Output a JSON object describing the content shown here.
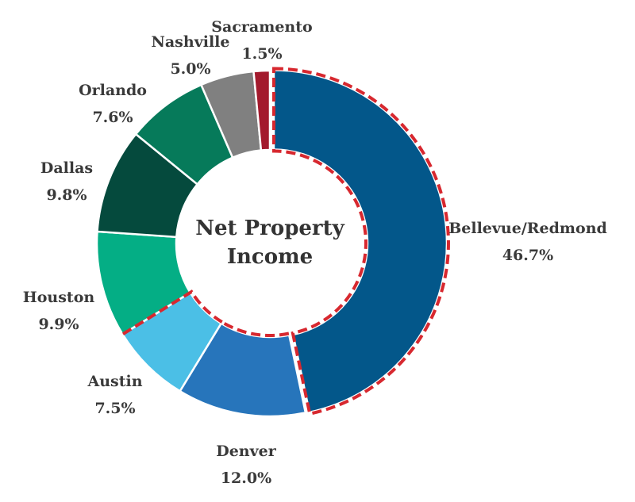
{
  "chart_data": {
    "type": "pie",
    "variant": "donut",
    "center_label": [
      "Net Property",
      "Income"
    ],
    "start_angle": "top, clockwise",
    "highlighted": [
      "Bellevue/Redmond",
      "Denver",
      "Austin"
    ],
    "highlight_color": "#d7282f",
    "slices": [
      {
        "label": "Bellevue/Redmond",
        "value": 46.7,
        "display": "46.7%",
        "color": "#03578a"
      },
      {
        "label": "Denver",
        "value": 12.0,
        "display": "12.0%",
        "color": "#2775bb"
      },
      {
        "label": "Austin",
        "value": 7.5,
        "display": "7.5%",
        "color": "#4bbfe6"
      },
      {
        "label": "Houston",
        "value": 9.9,
        "display": "9.9%",
        "color": "#04ae85"
      },
      {
        "label": "Dallas",
        "value": 9.8,
        "display": "9.8%",
        "color": "#054a3d"
      },
      {
        "label": "Orlando",
        "value": 7.6,
        "display": "7.6%",
        "color": "#067a5a"
      },
      {
        "label": "Nashville",
        "value": 5.0,
        "display": "5.0%",
        "color": "#808080"
      },
      {
        "label": "Sacramento",
        "value": 1.5,
        "display": "1.5%",
        "color": "#a31a2d"
      }
    ]
  }
}
